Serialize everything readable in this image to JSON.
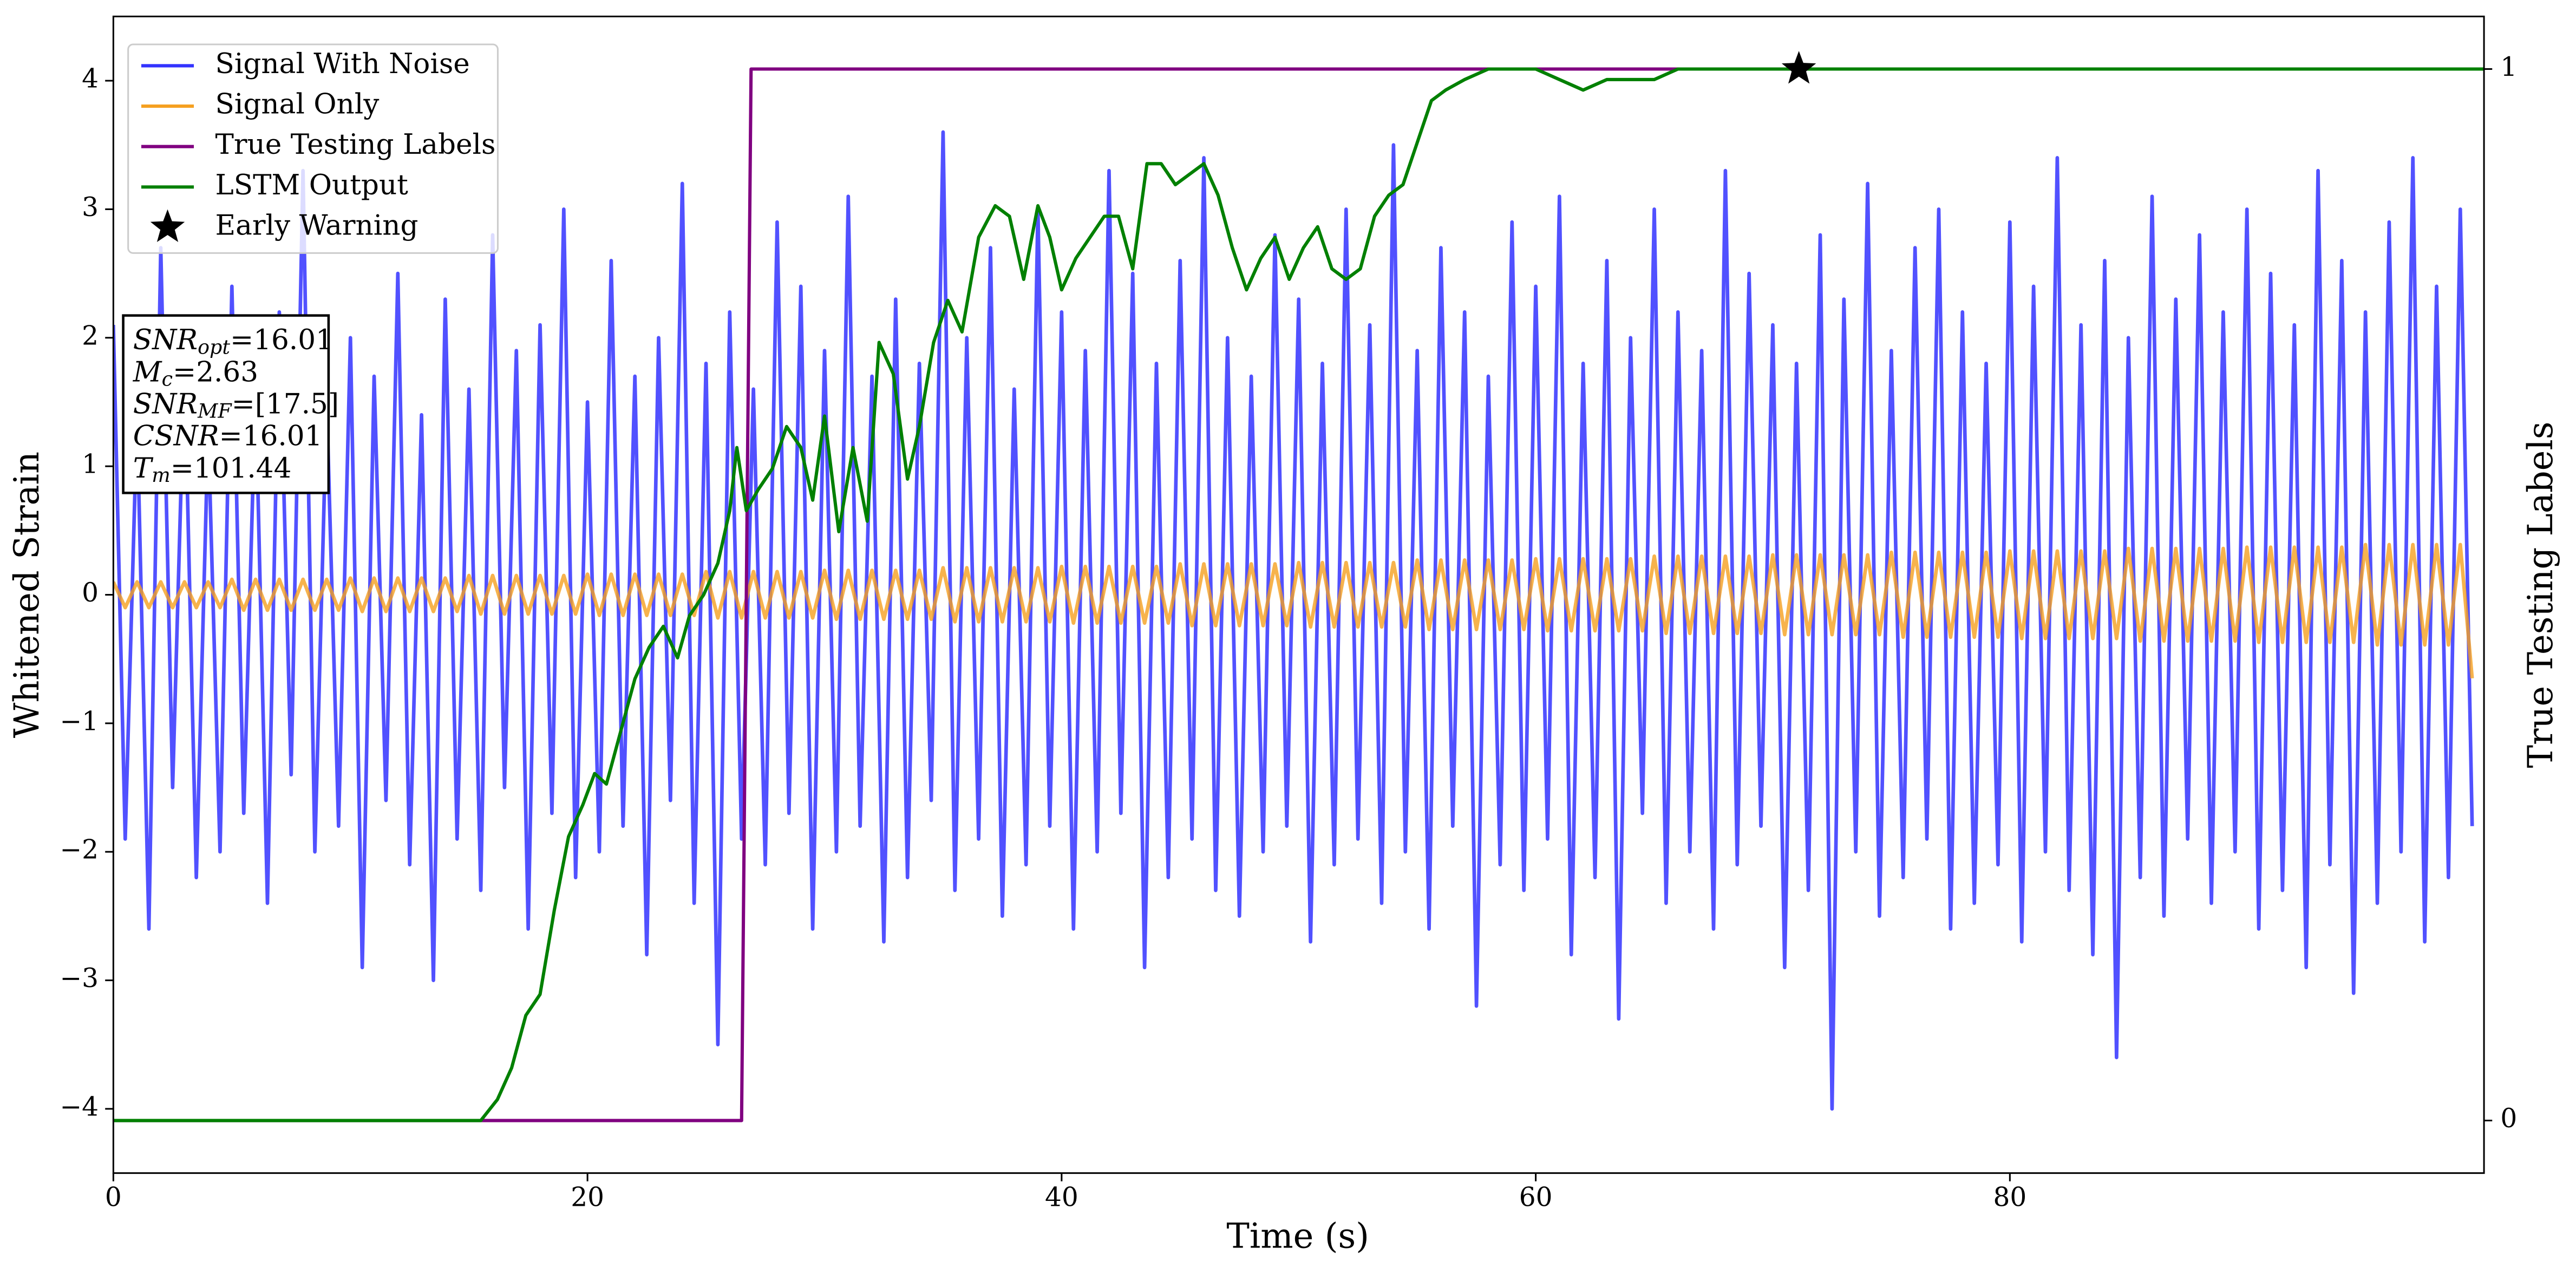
{
  "chart_data": {
    "type": "line",
    "xlabel": "Time (s)",
    "ylabel": "Whitened Strain",
    "y2label": "True Testing Labels",
    "xlim": [
      0,
      100
    ],
    "ylim": [
      -4.5,
      4.5
    ],
    "y2lim": [
      -0.05,
      1.05
    ],
    "xticks": [
      0,
      20,
      40,
      60,
      80
    ],
    "yticks": [
      {
        "value": -4,
        "label": "−4"
      },
      {
        "value": -3,
        "label": "−3"
      },
      {
        "value": -2,
        "label": "−2"
      },
      {
        "value": -1,
        "label": "−1"
      },
      0,
      1,
      2,
      3,
      4
    ],
    "y2ticks": [
      0,
      1
    ],
    "legend": "upper left",
    "annotation": [
      {
        "base": "SNR",
        "sub": "opt",
        "rest": "=16.01"
      },
      {
        "base": "M",
        "sub": "c",
        "rest": "=2.63"
      },
      {
        "base": "SNR",
        "sub": "MF",
        "rest": "=[17.5]"
      },
      {
        "base": "CSNR",
        "sub": "",
        "rest": "=16.01"
      },
      {
        "base": "T",
        "sub": "m",
        "rest": "=101.44"
      }
    ],
    "x": [
      0,
      0.5,
      1,
      1.5,
      2,
      2.5,
      3,
      3.5,
      4,
      4.5,
      5,
      5.5,
      6,
      6.5,
      7,
      7.5,
      8,
      8.5,
      9,
      9.5,
      10,
      10.5,
      11,
      11.5,
      12,
      12.5,
      13,
      13.5,
      14,
      14.5,
      15,
      15.5,
      16,
      16.5,
      17,
      17.5,
      18,
      18.5,
      19,
      19.5,
      20,
      20.5,
      21,
      21.5,
      22,
      22.5,
      23,
      23.5,
      24,
      24.5,
      25,
      25.5,
      26,
      26.5,
      27,
      27.5,
      28,
      28.5,
      29,
      29.5,
      30,
      30.5,
      31,
      31.5,
      32,
      32.5,
      33,
      33.5,
      34,
      34.5,
      35,
      35.5,
      36,
      36.5,
      37,
      37.5,
      38,
      38.5,
      39,
      39.5,
      40,
      40.5,
      41,
      41.5,
      42,
      42.5,
      43,
      43.5,
      44,
      44.5,
      45,
      45.5,
      46,
      46.5,
      47,
      47.5,
      48,
      48.5,
      49,
      49.5,
      50,
      50.5,
      51,
      51.5,
      52,
      52.5,
      53,
      53.5,
      54,
      54.5,
      55,
      55.5,
      56,
      56.5,
      57,
      57.5,
      58,
      58.5,
      59,
      59.5,
      60,
      60.5,
      61,
      61.5,
      62,
      62.5,
      63,
      63.5,
      64,
      64.5,
      65,
      65.5,
      66,
      66.5,
      67,
      67.5,
      68,
      68.5,
      69,
      69.5,
      70,
      70.5,
      71,
      71.5,
      72,
      72.5,
      73,
      73.5,
      74,
      74.5,
      75,
      75.5,
      76,
      76.5,
      77,
      77.5,
      78,
      78.5,
      79,
      79.5,
      80,
      80.5,
      81,
      81.5,
      82,
      82.5,
      83,
      83.5,
      84,
      84.5,
      85,
      85.5,
      86,
      86.5,
      87,
      87.5,
      88,
      88.5,
      89,
      89.5,
      90,
      90.5,
      91,
      91.5,
      92,
      92.5,
      93,
      93.5,
      94,
      94.5,
      95,
      95.5,
      96,
      96.5,
      97,
      97.5,
      98,
      98.5,
      99,
      99.5
    ],
    "series": [
      {
        "name": "Signal With Noise",
        "color": "#3333ff",
        "marker": "line",
        "axis": "y",
        "values": [
          2.1,
          -1.9,
          1.4,
          -2.6,
          2.7,
          -1.5,
          1.8,
          -2.2,
          1.3,
          -2.0,
          2.4,
          -1.7,
          1.6,
          -2.4,
          2.2,
          -1.4,
          3.3,
          -2.0,
          1.5,
          -1.8,
          2.0,
          -2.9,
          1.7,
          -1.6,
          2.5,
          -2.1,
          1.4,
          -3.0,
          2.3,
          -1.9,
          1.6,
          -2.3,
          2.8,
          -1.5,
          1.9,
          -2.6,
          2.1,
          -1.7,
          3.0,
          -2.2,
          1.5,
          -2.0,
          2.6,
          -1.8,
          1.7,
          -2.8,
          2.0,
          -1.6,
          3.2,
          -2.4,
          1.8,
          -3.5,
          2.2,
          -1.9,
          1.6,
          -2.1,
          2.9,
          -1.7,
          2.4,
          -2.6,
          1.9,
          -2.0,
          3.1,
          -1.8,
          1.7,
          -2.7,
          2.3,
          -2.2,
          1.8,
          -1.6,
          3.6,
          -2.3,
          2.0,
          -1.9,
          2.7,
          -2.5,
          1.6,
          -2.1,
          3.0,
          -1.8,
          2.2,
          -2.6,
          1.9,
          -2.0,
          3.3,
          -1.7,
          2.5,
          -2.9,
          1.8,
          -2.2,
          2.6,
          -1.9,
          3.4,
          -2.3,
          2.0,
          -2.5,
          1.7,
          -2.0,
          2.8,
          -1.8,
          2.3,
          -2.7,
          1.8,
          -2.1,
          3.0,
          -1.9,
          2.1,
          -2.4,
          3.5,
          -2.0,
          1.9,
          -2.6,
          2.7,
          -1.8,
          2.2,
          -3.2,
          1.7,
          -2.1,
          2.9,
          -2.3,
          2.4,
          -1.9,
          3.1,
          -2.8,
          1.8,
          -2.2,
          2.6,
          -3.3,
          2.0,
          -1.7,
          3.0,
          -2.4,
          2.2,
          -2.0,
          1.9,
          -2.6,
          3.3,
          -2.1,
          2.5,
          -1.8,
          2.1,
          -2.9,
          1.8,
          -2.3,
          2.8,
          -4.0,
          2.3,
          -2.0,
          3.2,
          -2.5,
          1.9,
          -2.2,
          2.7,
          -1.9,
          3.0,
          -2.6,
          2.2,
          -2.4,
          1.8,
          -2.1,
          2.9,
          -2.7,
          2.4,
          -2.0,
          3.4,
          -2.3,
          2.1,
          -2.8,
          2.6,
          -3.6,
          2.0,
          -2.2,
          3.1,
          -2.5,
          2.3,
          -1.9,
          2.8,
          -2.4,
          2.2,
          -2.0,
          3.0,
          -2.6,
          2.5,
          -2.3,
          2.1,
          -2.9,
          3.3,
          -2.1,
          2.6,
          -3.1,
          2.2,
          -2.4,
          2.9,
          -2.0,
          3.4,
          -2.7,
          2.4,
          -2.2,
          3.0,
          -1.8
        ]
      },
      {
        "name": "Signal Only",
        "color": "#f5a020",
        "marker": "line",
        "axis": "y",
        "values": [
          0.1,
          -0.1,
          0.1,
          -0.1,
          0.1,
          -0.1,
          0.1,
          -0.1,
          0.1,
          -0.1,
          0.12,
          -0.12,
          0.12,
          -0.12,
          0.12,
          -0.12,
          0.12,
          -0.12,
          0.12,
          -0.12,
          0.13,
          -0.13,
          0.13,
          -0.13,
          0.13,
          -0.13,
          0.13,
          -0.13,
          0.13,
          -0.13,
          0.15,
          -0.15,
          0.15,
          -0.15,
          0.15,
          -0.15,
          0.15,
          -0.15,
          0.15,
          -0.15,
          0.16,
          -0.16,
          0.16,
          -0.16,
          0.16,
          -0.16,
          0.16,
          -0.16,
          0.16,
          -0.16,
          0.18,
          -0.18,
          0.18,
          -0.18,
          0.18,
          -0.18,
          0.18,
          -0.18,
          0.18,
          -0.18,
          0.19,
          -0.19,
          0.19,
          -0.19,
          0.19,
          -0.19,
          0.19,
          -0.19,
          0.19,
          -0.19,
          0.21,
          -0.21,
          0.21,
          -0.21,
          0.21,
          -0.21,
          0.21,
          -0.21,
          0.21,
          -0.21,
          0.22,
          -0.22,
          0.22,
          -0.22,
          0.22,
          -0.22,
          0.22,
          -0.22,
          0.22,
          -0.22,
          0.24,
          -0.24,
          0.24,
          -0.24,
          0.24,
          -0.24,
          0.24,
          -0.24,
          0.24,
          -0.24,
          0.25,
          -0.25,
          0.25,
          -0.25,
          0.25,
          -0.25,
          0.25,
          -0.25,
          0.25,
          -0.25,
          0.27,
          -0.27,
          0.27,
          -0.27,
          0.27,
          -0.27,
          0.27,
          -0.27,
          0.27,
          -0.27,
          0.28,
          -0.28,
          0.28,
          -0.28,
          0.28,
          -0.28,
          0.28,
          -0.28,
          0.28,
          -0.28,
          0.3,
          -0.3,
          0.3,
          -0.3,
          0.3,
          -0.3,
          0.3,
          -0.3,
          0.3,
          -0.3,
          0.31,
          -0.31,
          0.31,
          -0.31,
          0.31,
          -0.31,
          0.31,
          -0.31,
          0.31,
          -0.31,
          0.33,
          -0.33,
          0.33,
          -0.33,
          0.33,
          -0.33,
          0.33,
          -0.33,
          0.33,
          -0.33,
          0.34,
          -0.34,
          0.34,
          -0.34,
          0.34,
          -0.34,
          0.34,
          -0.34,
          0.34,
          -0.34,
          0.36,
          -0.36,
          0.36,
          -0.36,
          0.36,
          -0.36,
          0.36,
          -0.36,
          0.36,
          -0.36,
          0.37,
          -0.37,
          0.37,
          -0.37,
          0.37,
          -0.37,
          0.37,
          -0.37,
          0.37,
          -0.37,
          0.39,
          -0.39,
          0.39,
          -0.39,
          0.39,
          -0.39,
          0.39,
          -0.39,
          0.39,
          -0.65
        ]
      },
      {
        "name": "True Testing Labels",
        "color": "#800080",
        "marker": "line",
        "axis": "y2",
        "x": [
          0,
          26.5,
          26.9,
          100
        ],
        "values": [
          0,
          0,
          1,
          1
        ]
      },
      {
        "name": "LSTM Output",
        "color": "#008000",
        "marker": "line",
        "axis": "y2",
        "x": [
          0,
          15.5,
          16.2,
          16.8,
          17.4,
          18,
          18.6,
          19.2,
          19.8,
          20.3,
          20.8,
          21.4,
          22,
          22.6,
          23.2,
          23.8,
          24.3,
          24.9,
          25.5,
          26,
          26.3,
          26.7,
          27.2,
          27.8,
          28.4,
          29,
          29.5,
          30,
          30.6,
          31.2,
          31.8,
          32.3,
          32.9,
          33.5,
          34,
          34.6,
          35.2,
          35.8,
          36.5,
          37.2,
          37.8,
          38.4,
          39,
          39.5,
          40,
          40.6,
          41.2,
          41.8,
          42.4,
          43,
          43.6,
          44.2,
          44.8,
          45.4,
          46,
          46.6,
          47.2,
          47.8,
          48.4,
          49,
          49.6,
          50.2,
          50.8,
          51.4,
          52,
          52.6,
          53.2,
          53.8,
          54.4,
          55,
          55.6,
          56.2,
          57,
          58,
          59,
          60,
          61,
          62,
          63,
          64,
          65,
          66,
          68,
          70,
          100
        ],
        "values": [
          0,
          0,
          0.02,
          0.05,
          0.1,
          0.12,
          0.2,
          0.27,
          0.3,
          0.33,
          0.32,
          0.37,
          0.42,
          0.45,
          0.47,
          0.44,
          0.48,
          0.5,
          0.53,
          0.58,
          0.64,
          0.58,
          0.6,
          0.62,
          0.66,
          0.64,
          0.59,
          0.67,
          0.56,
          0.64,
          0.57,
          0.74,
          0.71,
          0.61,
          0.66,
          0.74,
          0.78,
          0.75,
          0.84,
          0.87,
          0.86,
          0.8,
          0.87,
          0.84,
          0.79,
          0.82,
          0.84,
          0.86,
          0.86,
          0.81,
          0.91,
          0.91,
          0.89,
          0.9,
          0.91,
          0.88,
          0.83,
          0.79,
          0.82,
          0.84,
          0.8,
          0.83,
          0.85,
          0.81,
          0.8,
          0.81,
          0.86,
          0.88,
          0.89,
          0.93,
          0.97,
          0.98,
          0.99,
          1.0,
          1.0,
          1.0,
          0.99,
          0.98,
          0.99,
          0.99,
          0.99,
          1.0,
          1.0,
          1.0,
          1.0
        ]
      },
      {
        "name": "Early Warning",
        "color": "#000000",
        "marker": "star",
        "axis": "y2",
        "x": [
          71.1
        ],
        "values": [
          1
        ]
      }
    ]
  }
}
